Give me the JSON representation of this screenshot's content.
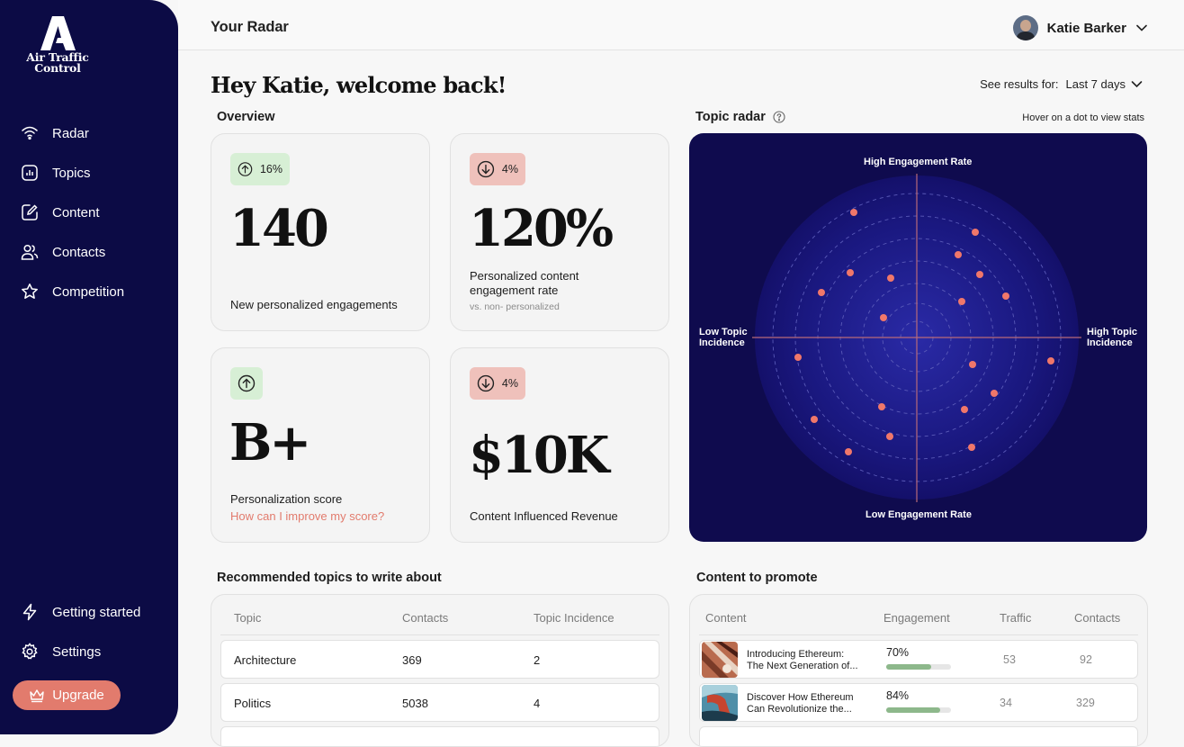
{
  "app": {
    "logo_line1": "Air Traffic",
    "logo_line2": "Control"
  },
  "sidebar": {
    "items": [
      {
        "label": "Radar",
        "icon": "radar-icon"
      },
      {
        "label": "Topics",
        "icon": "topics-icon"
      },
      {
        "label": "Content",
        "icon": "content-icon"
      },
      {
        "label": "Contacts",
        "icon": "contacts-icon"
      },
      {
        "label": "Competition",
        "icon": "star-icon"
      }
    ],
    "bottom": [
      {
        "label": "Getting started",
        "icon": "lightning-icon"
      },
      {
        "label": "Settings",
        "icon": "gear-icon"
      }
    ],
    "upgrade_label": "Upgrade"
  },
  "header": {
    "title": "Your Radar",
    "user_name": "Katie Barker"
  },
  "greeting": "Hey Katie, welcome back!",
  "results": {
    "label": "See results for:",
    "value": "Last 7 days"
  },
  "overview": {
    "title": "Overview",
    "cards": [
      {
        "badge": "16%",
        "trend": "up",
        "value": "140",
        "label": "New  personalized engagements"
      },
      {
        "badge": "4%",
        "trend": "down",
        "value": "120%",
        "label_line1": "Personalized content",
        "label_line2": "engagement rate",
        "sub": "vs. non- personalized"
      },
      {
        "badge": "",
        "trend": "up",
        "value": "B+",
        "label": "Personalization score",
        "link": "How can I improve my score?"
      },
      {
        "badge": "4%",
        "trend": "down",
        "value": "$10K",
        "label": "Content Influenced Revenue"
      }
    ]
  },
  "radar": {
    "title": "Topic radar",
    "hint": "Hover on a dot to view stats",
    "axis_top": "High Engagement Rate",
    "axis_bottom": "Low Engagement Rate",
    "axis_left_1": "Low Topic",
    "axis_left_2": "Incidence",
    "axis_right_1": "High Topic",
    "axis_right_2": "Incidence",
    "colors": {
      "background": "#0f0b4e",
      "dot": "#f0776a",
      "axis": "#b86a7a"
    }
  },
  "recommended": {
    "title": "Recommended topics to write about",
    "columns": [
      "Topic",
      "Contacts",
      "Topic Incidence"
    ],
    "rows": [
      {
        "topic": "Architecture",
        "contacts": "369",
        "incidence": "2"
      },
      {
        "topic": "Politics",
        "contacts": "5038",
        "incidence": "4"
      }
    ]
  },
  "promote": {
    "title": "Content to promote",
    "columns": [
      "Content",
      "Engagement",
      "Traffic",
      "Contacts"
    ],
    "rows": [
      {
        "title_line1": "Introducing Ethereum:",
        "title_line2": "The Next Generation of...",
        "engagement": "70%",
        "engagement_value": 0.7,
        "traffic": "53",
        "contacts": "92"
      },
      {
        "title_line1": "Discover How Ethereum",
        "title_line2": "Can Revolutionize the...",
        "engagement": "84%",
        "engagement_value": 0.84,
        "traffic": "34",
        "contacts": "329"
      }
    ]
  }
}
